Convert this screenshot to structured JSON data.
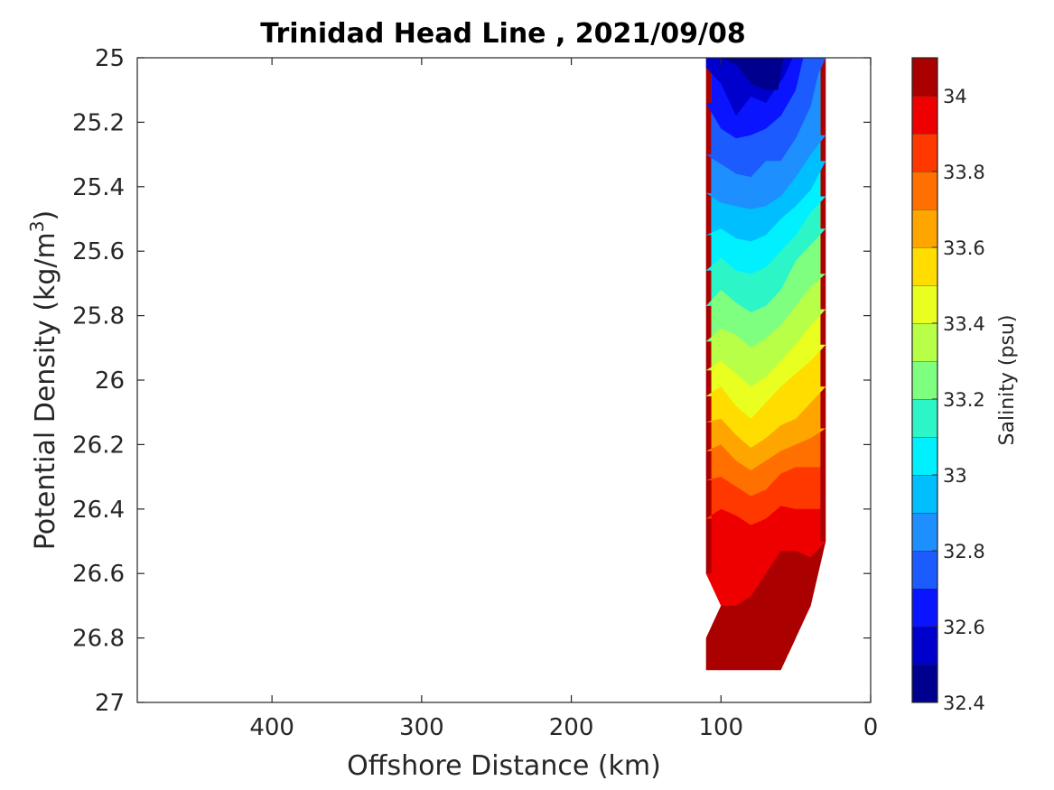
{
  "chart_data": {
    "type": "heatmap",
    "title": "Trinidad Head Line , 2021/09/08",
    "xlabel": "Offshore Distance (km)",
    "ylabel_main": "Potential Density (kg/m",
    "ylabel_sup": "3",
    "ylabel_end": ")",
    "xlim": [
      490,
      0
    ],
    "ylim": [
      25,
      27
    ],
    "x_reversed": true,
    "y_reversed": true,
    "x_ticks": [
      400,
      300,
      200,
      100,
      0
    ],
    "x_tick_labels": [
      "400",
      "300",
      "200",
      "100",
      "0"
    ],
    "y_ticks": [
      25,
      25.2,
      25.4,
      25.6,
      25.8,
      26,
      26.2,
      26.4,
      26.6,
      26.8,
      27
    ],
    "y_tick_labels": [
      "25",
      "25.2",
      "25.4",
      "25.6",
      "25.8",
      "26",
      "26.2",
      "26.4",
      "26.6",
      "26.8",
      "27"
    ],
    "colorbar": {
      "label": "Salinity (psu)",
      "range": [
        32.4,
        34.1
      ],
      "step": 0.1,
      "ticks": [
        32.4,
        32.6,
        32.8,
        33,
        33.2,
        33.4,
        33.6,
        33.8,
        34
      ],
      "tick_labels": [
        "32.4",
        "32.6",
        "32.8",
        "33",
        "33.2",
        "33.4",
        "33.6",
        "33.8",
        "34"
      ],
      "colors": [
        "#00008f",
        "#0000cc",
        "#0a14ff",
        "#1c5cff",
        "#1e8fff",
        "#00bfff",
        "#00f0ff",
        "#2cf5c8",
        "#7fff80",
        "#b8ff48",
        "#e8ff20",
        "#ffdd00",
        "#ffa500",
        "#ff7000",
        "#ff3800",
        "#ee0000",
        "#aa0000"
      ]
    },
    "section": {
      "x_offshore_edge": 110,
      "x_nearshore_edge": 30,
      "bottom_outline": [
        [
          110,
          25
        ],
        [
          30,
          25
        ],
        [
          30,
          26.5
        ],
        [
          40,
          26.7
        ],
        [
          60,
          26.9
        ],
        [
          110,
          26.9
        ],
        [
          110,
          26.8
        ],
        [
          100,
          26.7
        ],
        [
          110,
          26.6
        ]
      ],
      "contours": [
        {
          "level": 32.5,
          "points": [
            [
              102,
              25.0
            ],
            [
              90,
              25.02
            ],
            [
              80,
              25.08
            ],
            [
              70,
              25.1
            ],
            [
              62,
              25.1
            ],
            [
              58,
              25.0
            ]
          ]
        },
        {
          "level": 32.6,
          "points": [
            [
              110,
              25.0
            ],
            [
              110,
              25.03
            ],
            [
              100,
              25.08
            ],
            [
              90,
              25.18
            ],
            [
              80,
              25.12
            ],
            [
              70,
              25.14
            ],
            [
              58,
              25.06
            ],
            [
              52,
              25.0
            ]
          ]
        },
        {
          "level": 32.7,
          "points": [
            [
              110,
              25.14
            ],
            [
              100,
              25.22
            ],
            [
              90,
              25.25
            ],
            [
              80,
              25.24
            ],
            [
              70,
              25.22
            ],
            [
              60,
              25.18
            ],
            [
              50,
              25.1
            ],
            [
              45,
              25.0
            ]
          ]
        },
        {
          "level": 32.8,
          "points": [
            [
              110,
              25.3
            ],
            [
              100,
              25.33
            ],
            [
              90,
              25.36
            ],
            [
              80,
              25.37
            ],
            [
              70,
              25.32
            ],
            [
              60,
              25.32
            ],
            [
              50,
              25.25
            ],
            [
              40,
              25.15
            ],
            [
              35,
              25.05
            ],
            [
              30,
              25.0
            ]
          ]
        },
        {
          "level": 32.9,
          "points": [
            [
              110,
              25.42
            ],
            [
              100,
              25.45
            ],
            [
              90,
              25.46
            ],
            [
              80,
              25.47
            ],
            [
              70,
              25.46
            ],
            [
              60,
              25.43
            ],
            [
              50,
              25.37
            ],
            [
              40,
              25.3
            ],
            [
              30,
              25.24
            ]
          ]
        },
        {
          "level": 33.0,
          "points": [
            [
              110,
              25.55
            ],
            [
              100,
              25.53
            ],
            [
              90,
              25.56
            ],
            [
              80,
              25.57
            ],
            [
              70,
              25.55
            ],
            [
              60,
              25.5
            ],
            [
              50,
              25.46
            ],
            [
              40,
              25.41
            ],
            [
              30,
              25.32
            ]
          ]
        },
        {
          "level": 33.1,
          "points": [
            [
              110,
              25.66
            ],
            [
              100,
              25.62
            ],
            [
              90,
              25.66
            ],
            [
              80,
              25.67
            ],
            [
              70,
              25.65
            ],
            [
              60,
              25.6
            ],
            [
              50,
              25.55
            ],
            [
              40,
              25.48
            ],
            [
              30,
              25.43
            ]
          ]
        },
        {
          "level": 33.2,
          "points": [
            [
              110,
              25.77
            ],
            [
              100,
              25.72
            ],
            [
              90,
              25.76
            ],
            [
              80,
              25.79
            ],
            [
              70,
              25.77
            ],
            [
              60,
              25.72
            ],
            [
              50,
              25.63
            ],
            [
              40,
              25.58
            ],
            [
              30,
              25.53
            ]
          ]
        },
        {
          "level": 33.3,
          "points": [
            [
              110,
              25.88
            ],
            [
              100,
              25.84
            ],
            [
              90,
              25.86
            ],
            [
              80,
              25.9
            ],
            [
              70,
              25.87
            ],
            [
              60,
              25.83
            ],
            [
              50,
              25.77
            ],
            [
              40,
              25.71
            ],
            [
              30,
              25.67
            ]
          ]
        },
        {
          "level": 33.4,
          "points": [
            [
              110,
              25.97
            ],
            [
              100,
              25.94
            ],
            [
              90,
              25.98
            ],
            [
              80,
              26.02
            ],
            [
              70,
              25.99
            ],
            [
              60,
              25.94
            ],
            [
              50,
              25.89
            ],
            [
              40,
              25.83
            ],
            [
              30,
              25.78
            ]
          ]
        },
        {
          "level": 33.5,
          "points": [
            [
              110,
              26.05
            ],
            [
              100,
              26.02
            ],
            [
              90,
              26.08
            ],
            [
              80,
              26.12
            ],
            [
              70,
              26.07
            ],
            [
              60,
              26.02
            ],
            [
              50,
              25.98
            ],
            [
              40,
              25.94
            ],
            [
              30,
              25.89
            ]
          ]
        },
        {
          "level": 33.6,
          "points": [
            [
              110,
              26.13
            ],
            [
              100,
              26.12
            ],
            [
              90,
              26.17
            ],
            [
              80,
              26.21
            ],
            [
              70,
              26.18
            ],
            [
              60,
              26.14
            ],
            [
              50,
              26.12
            ],
            [
              40,
              26.07
            ],
            [
              30,
              26.02
            ]
          ]
        },
        {
          "level": 33.7,
          "points": [
            [
              110,
              26.22
            ],
            [
              100,
              26.2
            ],
            [
              90,
              26.25
            ],
            [
              80,
              26.28
            ],
            [
              70,
              26.25
            ],
            [
              60,
              26.22
            ],
            [
              50,
              26.2
            ],
            [
              40,
              26.18
            ],
            [
              30,
              26.15
            ]
          ]
        },
        {
          "level": 33.8,
          "points": [
            [
              110,
              26.31
            ],
            [
              100,
              26.3
            ],
            [
              90,
              26.33
            ],
            [
              80,
              26.36
            ],
            [
              70,
              26.34
            ],
            [
              60,
              26.29
            ],
            [
              50,
              26.27
            ],
            [
              40,
              26.27
            ],
            [
              30,
              26.27
            ]
          ]
        },
        {
          "level": 33.9,
          "points": [
            [
              110,
              26.43
            ],
            [
              100,
              26.4
            ],
            [
              90,
              26.42
            ],
            [
              80,
              26.45
            ],
            [
              70,
              26.43
            ],
            [
              60,
              26.39
            ],
            [
              50,
              26.4
            ],
            [
              40,
              26.4
            ],
            [
              30,
              26.4
            ]
          ]
        },
        {
          "level": 34.0,
          "points": [
            [
              110,
              26.6
            ],
            [
              100,
              26.7
            ],
            [
              90,
              26.7
            ],
            [
              80,
              26.67
            ],
            [
              70,
              26.6
            ],
            [
              60,
              26.53
            ],
            [
              50,
              26.53
            ],
            [
              40,
              26.55
            ],
            [
              30,
              26.5
            ]
          ]
        },
        {
          "level": 34.1,
          "points": [
            [
              110,
              26.87
            ],
            [
              100,
              26.87
            ],
            [
              90,
              26.87
            ],
            [
              80,
              26.87
            ],
            [
              70,
              26.83
            ],
            [
              60,
              26.82
            ],
            [
              55,
              26.85
            ],
            [
              50,
              26.9
            ]
          ]
        }
      ]
    }
  }
}
